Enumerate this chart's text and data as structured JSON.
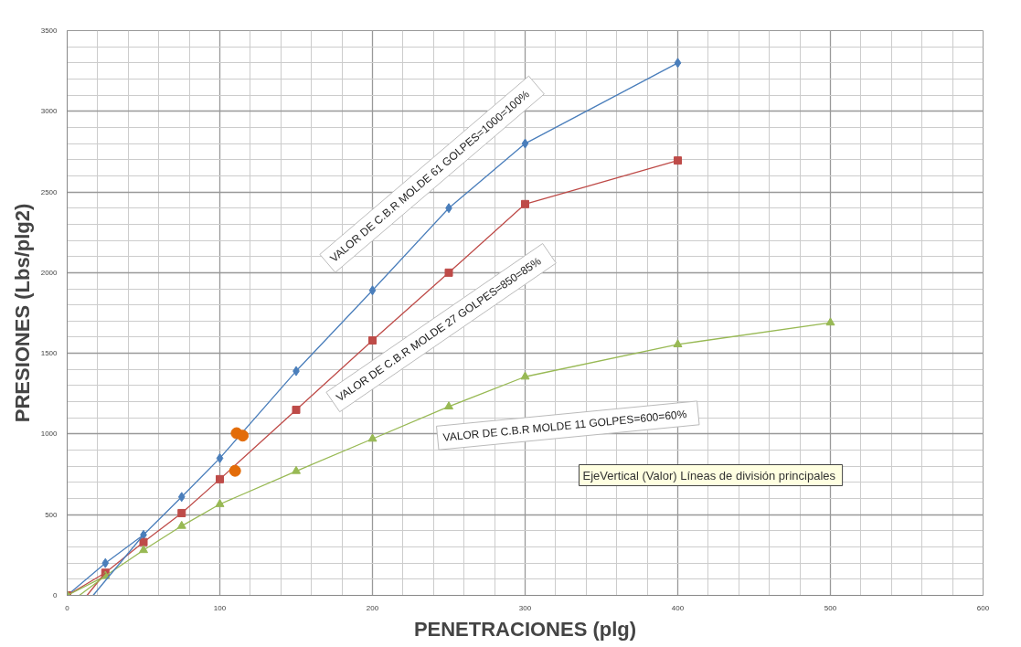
{
  "chart_data": {
    "type": "line",
    "xlabel": "PENETRACIONES (plg)",
    "ylabel": "PRESIONES (Lbs/plg2)",
    "xlim": [
      0,
      600
    ],
    "ylim": [
      0,
      3500
    ],
    "xticks": [
      0,
      100,
      200,
      300,
      400,
      500,
      600
    ],
    "yticks": [
      0,
      500,
      1000,
      1500,
      2000,
      2500,
      3000,
      3500
    ],
    "grid": true,
    "line_style": "solid",
    "series": [
      {
        "color": "#4a7ebb",
        "marker": "diamond",
        "x": [
          0,
          25,
          50,
          75,
          100,
          150,
          200,
          250,
          300,
          400
        ],
        "values": [
          0,
          200,
          375,
          610,
          850,
          1390,
          1890,
          2400,
          2800,
          3300
        ]
      },
      {
        "color": "#be4b48",
        "marker": "square",
        "x": [
          0,
          25,
          50,
          75,
          100,
          150,
          200,
          250,
          300,
          400
        ],
        "values": [
          0,
          140,
          330,
          510,
          720,
          1150,
          1580,
          2000,
          2425,
          2695
        ]
      },
      {
        "color": "#98b954",
        "marker": "triangle",
        "x": [
          0,
          25,
          50,
          75,
          100,
          150,
          200,
          250,
          300,
          400,
          500
        ],
        "values": [
          0,
          120,
          280,
          430,
          565,
          770,
          970,
          1170,
          1355,
          1555,
          1690
        ]
      },
      {
        "color": "#4a7ebb",
        "marker": "none",
        "x": [
          17,
          50
        ],
        "values": [
          0,
          375
        ]
      },
      {
        "color": "#be4b48",
        "marker": "none",
        "x": [
          13,
          25
        ],
        "values": [
          0,
          140
        ]
      },
      {
        "color": "#98b954",
        "marker": "none",
        "x": [
          8,
          25
        ],
        "values": [
          0,
          120
        ]
      },
      {
        "type": "scatter",
        "color": "#e36c09",
        "marker": "circle",
        "x": [
          111,
          115,
          110
        ],
        "values": [
          1005,
          990,
          772
        ]
      }
    ],
    "annotations": [
      "VALOR DE C.B.R  MOLDE  61 GOLPES=1000=100%",
      "VALOR DE C.B.R  MOLDE  27 GOLPES=850=85%",
      "VALOR DE C.B.R  MOLDE  11 GOLPES=600=60%",
      "EjeVertical (Valor)  Líneas de división principales"
    ]
  }
}
